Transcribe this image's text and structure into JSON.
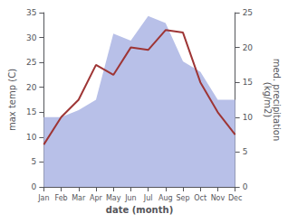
{
  "chart_data": {
    "type": "line",
    "xlabel": "date (month)",
    "ylabel": "max temp (C)",
    "y2label": "med. precipitation\n(kg/m2)",
    "categories": [
      "Jan",
      "Feb",
      "Mar",
      "Apr",
      "May",
      "Jun",
      "Jul",
      "Aug",
      "Sep",
      "Oct",
      "Nov",
      "Dec"
    ],
    "series": [
      {
        "type": "area",
        "axis": "y2",
        "color": "#b8c0e8",
        "values": [
          10.0,
          10.0,
          11.0,
          12.5,
          22.0,
          21.0,
          24.5,
          23.5,
          18.0,
          16.5,
          12.5,
          12.5
        ]
      },
      {
        "type": "line",
        "color": "#9e3535",
        "values": [
          8.5,
          14.0,
          17.5,
          24.5,
          22.5,
          28.0,
          27.5,
          31.5,
          31.0,
          21.0,
          15.0,
          10.5
        ]
      }
    ],
    "ylim": [
      0,
      35
    ],
    "yticks": [
      0,
      5,
      10,
      15,
      20,
      25,
      30,
      35
    ],
    "y2lim": [
      0,
      25
    ],
    "y2ticks": [
      0,
      5,
      10,
      15,
      20,
      25
    ],
    "grid": false
  }
}
